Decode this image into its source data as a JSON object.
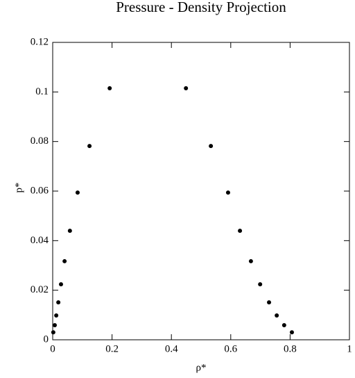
{
  "chart_data": {
    "type": "scatter",
    "title": "Pressure - Density Projection",
    "xlabel": "ρ*",
    "ylabel": "p*",
    "x": [
      0.002,
      0.007,
      0.012,
      0.019,
      0.028,
      0.04,
      0.058,
      0.084,
      0.124,
      0.192,
      0.449,
      0.533,
      0.591,
      0.631,
      0.668,
      0.699,
      0.729,
      0.755,
      0.78,
      0.806
    ],
    "values": [
      0.003,
      0.0059,
      0.0098,
      0.0151,
      0.0224,
      0.0317,
      0.044,
      0.0594,
      0.0782,
      0.1015,
      0.1015,
      0.0782,
      0.0594,
      0.044,
      0.0317,
      0.0224,
      0.0151,
      0.0098,
      0.0059,
      0.003
    ],
    "color": "#000000",
    "xlim": [
      0,
      1
    ],
    "xticks": [
      0,
      0.2,
      0.4,
      0.6,
      0.8,
      1
    ],
    "ylim": [
      0,
      0.12
    ],
    "yticks": [
      0,
      0.02,
      0.04,
      0.06,
      0.08,
      0.1,
      0.12
    ]
  }
}
